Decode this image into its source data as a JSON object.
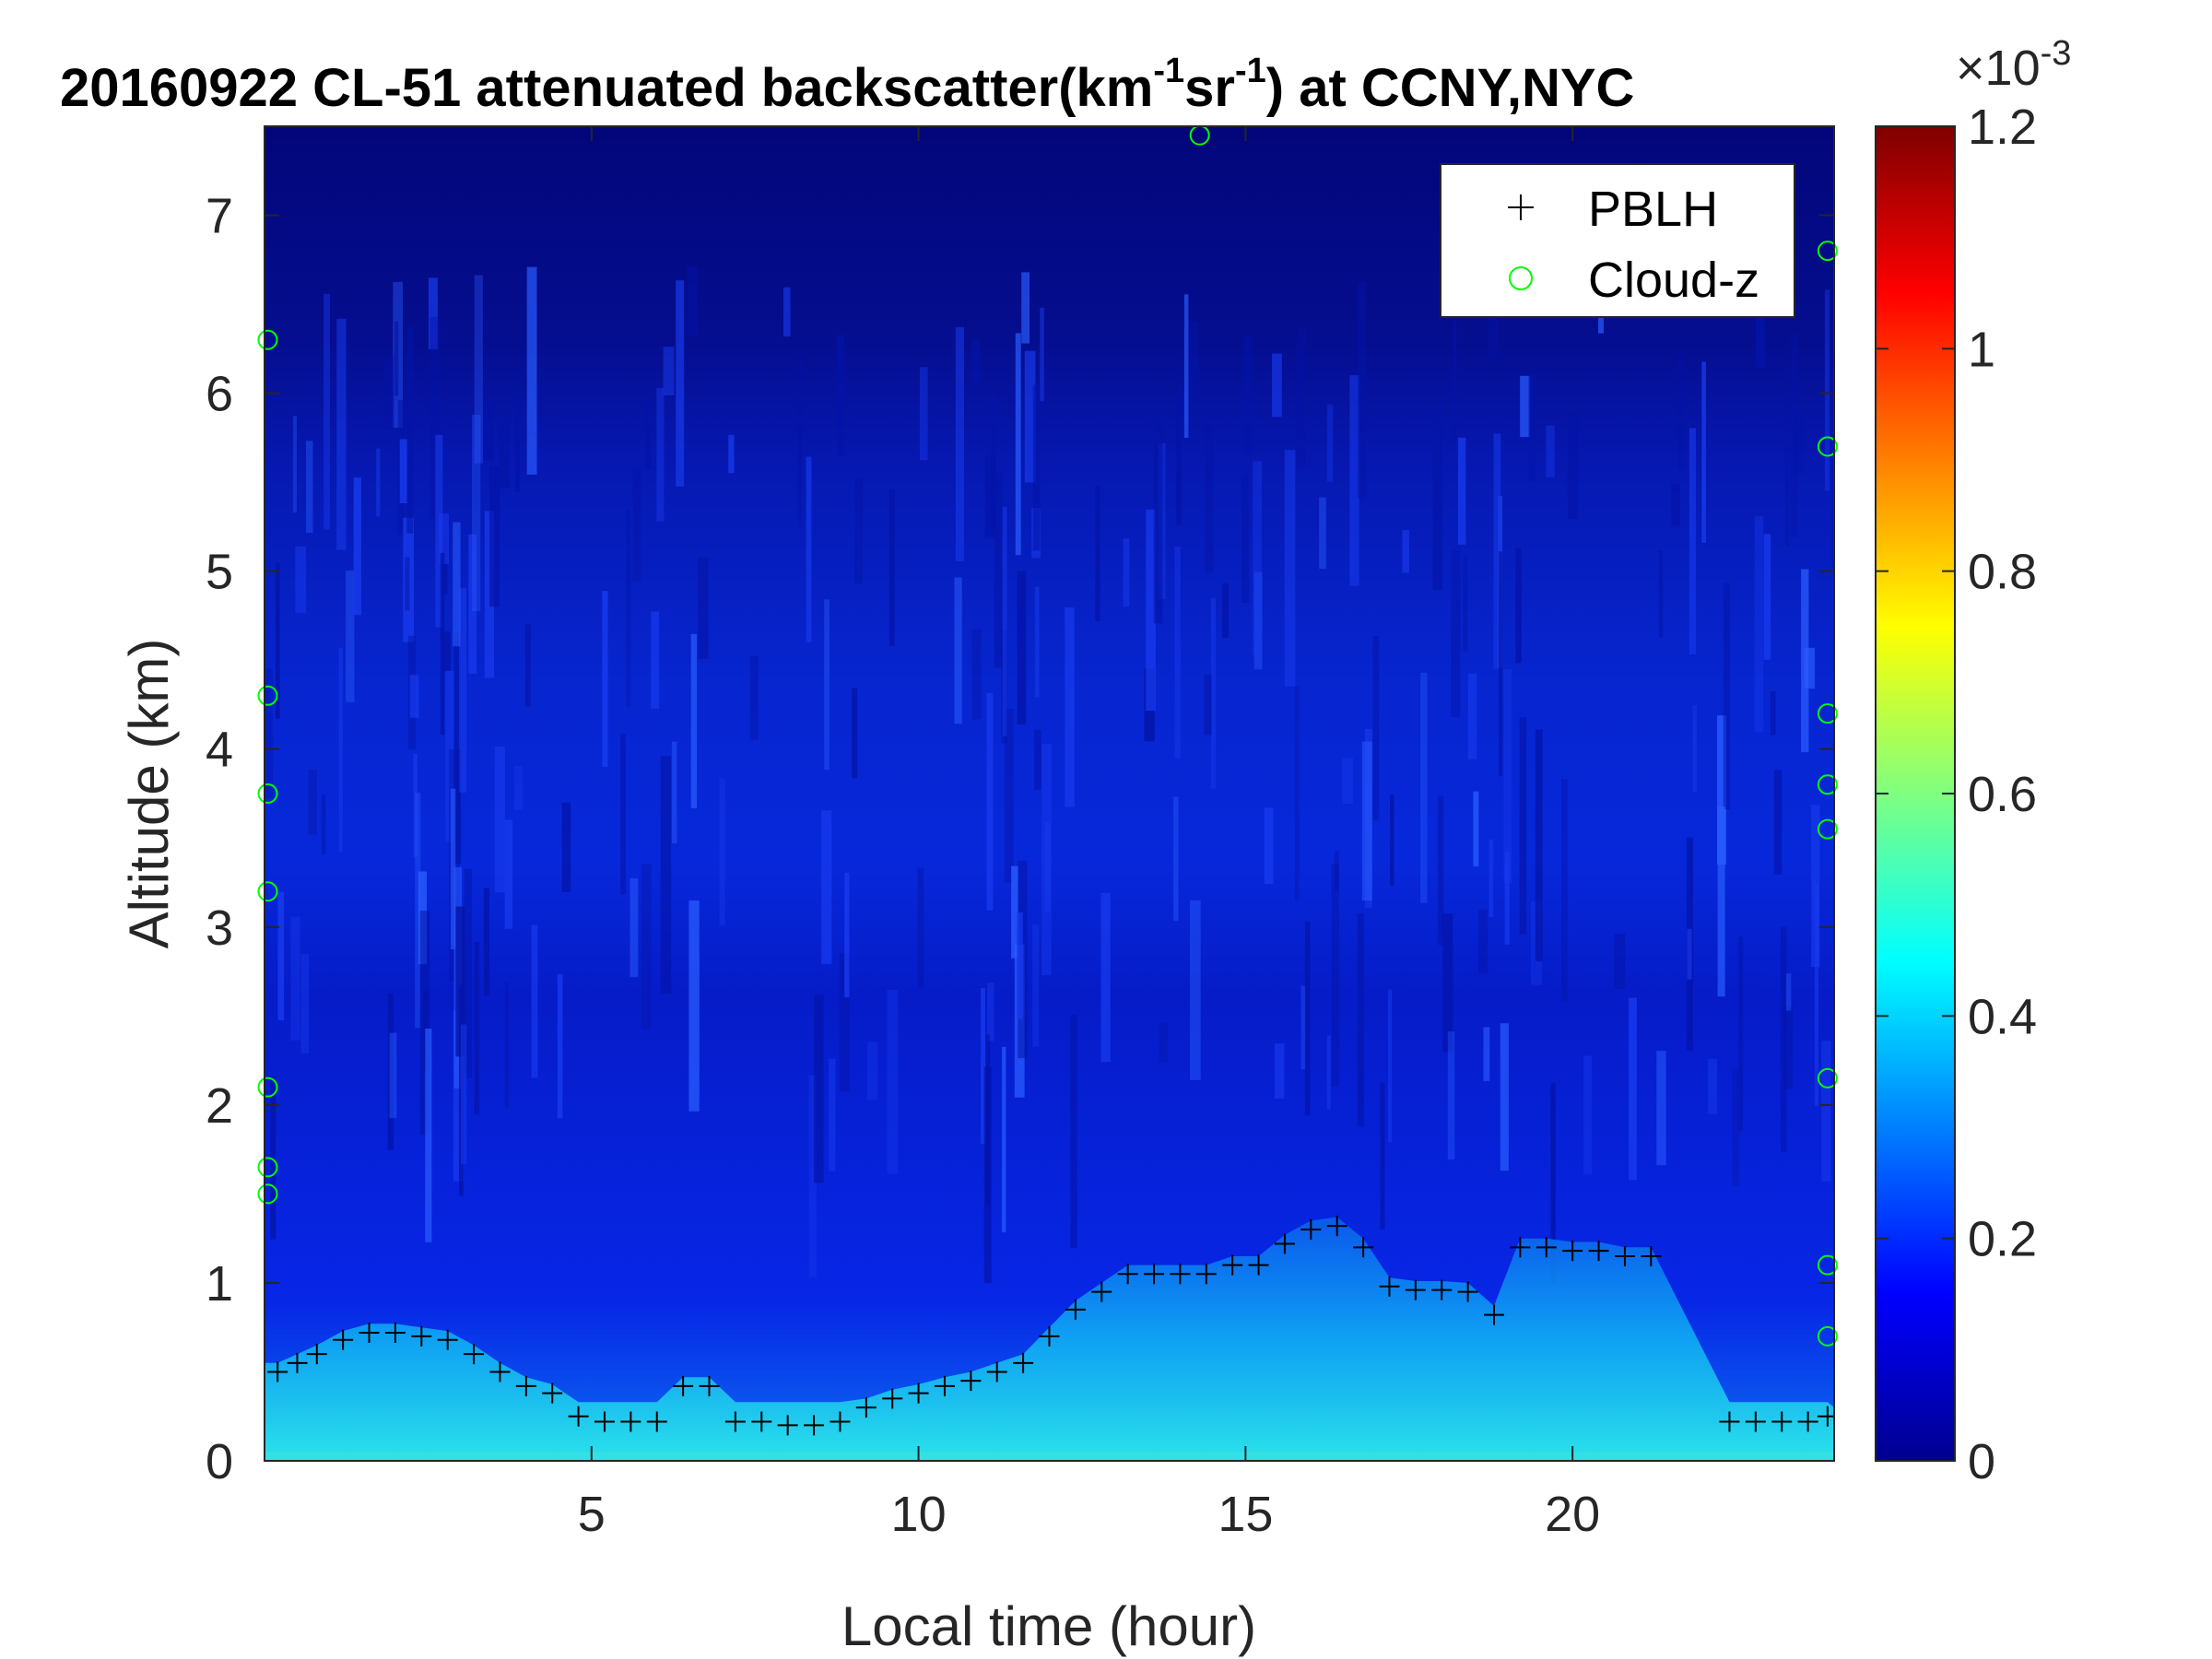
{
  "chart_data": {
    "type": "heatmap",
    "title_parts": {
      "prefix": "20160922  CL-51 attenuated backscatter(km",
      "sup1": "-1",
      "mid": "sr",
      "sup2": "-1",
      "suffix": ") at CCNY,NYC"
    },
    "xlabel": "Local time (hour)",
    "ylabel": "Altitude (km)",
    "xlim": [
      0,
      24
    ],
    "ylim": [
      0,
      7.5
    ],
    "xticks": [
      5,
      10,
      15,
      20
    ],
    "xtick_labels": [
      "5",
      "10",
      "15",
      "20"
    ],
    "yticks": [
      0,
      1,
      2,
      3,
      4,
      5,
      6,
      7
    ],
    "ytick_labels": [
      "0",
      "1",
      "2",
      "3",
      "4",
      "5",
      "6",
      "7"
    ],
    "colorbar": {
      "range": [
        0,
        0.0012
      ],
      "ticks": [
        0,
        0.0002,
        0.0004,
        0.0006,
        0.0008,
        0.001,
        0.0012
      ],
      "tick_labels": [
        "0",
        "0.2",
        "0.4",
        "0.6",
        "0.8",
        "1",
        "1.2"
      ],
      "exponent_base": "×10",
      "exponent": "-3",
      "colormap": "jet"
    },
    "legend": {
      "placement": "top-right",
      "entries": [
        {
          "label": "PBLH",
          "marker": "plus",
          "color": "#000000"
        },
        {
          "label": "Cloud-z",
          "marker": "circle",
          "color": "#00ff00"
        }
      ]
    },
    "pblh": {
      "x": [
        0.2,
        0.5,
        0.8,
        1.2,
        1.6,
        2.0,
        2.4,
        2.8,
        3.2,
        3.6,
        4.0,
        4.4,
        4.8,
        5.2,
        5.6,
        6.0,
        6.4,
        6.8,
        7.2,
        7.6,
        8.0,
        8.4,
        8.8,
        9.2,
        9.6,
        10.0,
        10.4,
        10.8,
        11.2,
        11.6,
        12.0,
        12.4,
        12.8,
        13.2,
        13.6,
        14.0,
        14.4,
        14.8,
        15.2,
        15.6,
        16.0,
        16.4,
        16.8,
        17.2,
        17.6,
        18.0,
        18.4,
        18.8,
        19.2,
        19.6,
        20.0,
        20.4,
        20.8,
        21.2,
        22.4,
        22.8,
        23.2,
        23.6,
        23.9
      ],
      "y": [
        0.5,
        0.55,
        0.6,
        0.68,
        0.72,
        0.72,
        0.7,
        0.68,
        0.6,
        0.5,
        0.42,
        0.38,
        0.25,
        0.22,
        0.22,
        0.22,
        0.42,
        0.42,
        0.22,
        0.22,
        0.2,
        0.2,
        0.22,
        0.3,
        0.35,
        0.38,
        0.42,
        0.45,
        0.5,
        0.55,
        0.7,
        0.85,
        0.95,
        1.05,
        1.05,
        1.05,
        1.05,
        1.1,
        1.1,
        1.22,
        1.3,
        1.32,
        1.2,
        0.98,
        0.96,
        0.96,
        0.95,
        0.82,
        1.2,
        1.2,
        1.18,
        1.18,
        1.15,
        1.15,
        0.22,
        0.22,
        0.22,
        0.22,
        0.25
      ]
    },
    "cloud_z": {
      "x": [
        0.05,
        0.05,
        0.05,
        0.05,
        0.05,
        0.05,
        0.05,
        14.3,
        23.9,
        23.9,
        23.9,
        23.9,
        23.9,
        23.9,
        23.9,
        23.9
      ],
      "y": [
        6.3,
        4.3,
        3.75,
        3.2,
        2.1,
        1.65,
        1.5,
        7.45,
        6.8,
        5.7,
        4.2,
        3.8,
        3.55,
        2.15,
        1.1,
        0.7
      ]
    }
  }
}
